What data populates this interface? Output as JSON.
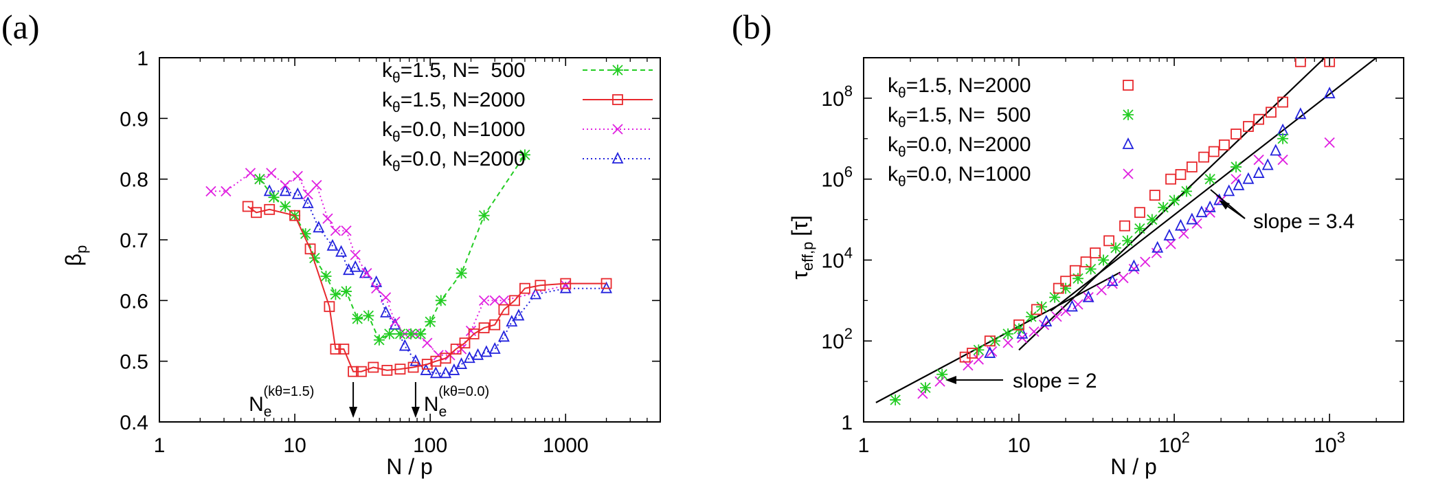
{
  "chart_data": [
    {
      "type": "scatter",
      "panel_label": "(a)",
      "xlabel": "N / p",
      "ylabel": "β",
      "ylabel_sub": "p",
      "xscale": "log",
      "xlim": [
        1,
        5000
      ],
      "ylim": [
        0.4,
        1.0
      ],
      "x_ticks": [
        1,
        10,
        100,
        1000
      ],
      "x_tick_labels": [
        "1",
        "10",
        "100",
        "1000"
      ],
      "y_ticks": [
        0.4,
        0.5,
        0.6,
        0.7,
        0.8,
        0.9,
        1.0
      ],
      "y_tick_labels": [
        "0.4",
        "0.5",
        "0.6",
        "0.7",
        "0.8",
        "0.9",
        "1"
      ],
      "legend": "top-right",
      "series": [
        {
          "label": {
            "k": "k",
            "sub": "θ",
            "rest": "=1.5, N=  500"
          },
          "color": "#22cc22",
          "marker": "asterisk",
          "line": "dashed",
          "x": [
            5.5,
            7,
            8.5,
            10,
            12,
            14,
            17,
            20,
            24,
            29,
            35,
            42,
            50,
            60,
            72,
            85,
            100,
            120,
            170,
            250,
            500
          ],
          "y": [
            0.8,
            0.77,
            0.755,
            0.74,
            0.71,
            0.67,
            0.64,
            0.61,
            0.615,
            0.57,
            0.575,
            0.535,
            0.545,
            0.545,
            0.545,
            0.545,
            0.565,
            0.6,
            0.645,
            0.74,
            0.84
          ]
        },
        {
          "label": {
            "k": "k",
            "sub": "θ",
            "rest": "=1.5, N=2000"
          },
          "color": "#e8282d",
          "marker": "square",
          "line": "solid",
          "x": [
            4.5,
            5.2,
            6.5,
            10,
            13,
            18,
            20,
            23,
            27,
            31,
            38,
            48,
            60,
            75,
            95,
            110,
            130,
            155,
            180,
            210,
            250,
            300,
            350,
            420,
            500,
            650,
            1000,
            2000
          ],
          "y": [
            0.755,
            0.745,
            0.75,
            0.74,
            0.685,
            0.59,
            0.52,
            0.52,
            0.483,
            0.483,
            0.49,
            0.485,
            0.487,
            0.49,
            0.495,
            0.5,
            0.505,
            0.52,
            0.53,
            0.545,
            0.555,
            0.56,
            0.585,
            0.6,
            0.62,
            0.625,
            0.628,
            0.628
          ]
        },
        {
          "label": {
            "k": "k",
            "sub": "θ",
            "rest": "=0.0, N=1000"
          },
          "color": "#e020e0",
          "marker": "cross",
          "line": "dotted",
          "x": [
            2.4,
            3.1,
            4.7,
            5.5,
            6.7,
            8.5,
            10.5,
            12.5,
            14.5,
            17.5,
            20,
            24,
            28,
            34,
            40,
            47,
            55,
            65,
            77,
            95,
            115,
            140,
            170,
            200,
            250,
            300,
            350,
            1000
          ],
          "y": [
            0.78,
            0.78,
            0.81,
            0.8,
            0.81,
            0.79,
            0.805,
            0.775,
            0.79,
            0.735,
            0.715,
            0.715,
            0.675,
            0.645,
            0.62,
            0.605,
            0.565,
            0.545,
            0.545,
            0.53,
            0.51,
            0.51,
            0.52,
            0.55,
            0.6,
            0.6,
            0.6,
            0.625
          ]
        },
        {
          "label": {
            "k": "k",
            "sub": "θ",
            "rest": "=0.0, N=2000"
          },
          "color": "#2222dd",
          "marker": "triangle",
          "line": "dotted",
          "x": [
            6.5,
            8.5,
            10.5,
            12.5,
            15,
            19,
            22,
            25,
            28,
            33,
            40,
            47,
            55,
            65,
            78,
            93,
            110,
            130,
            150,
            170,
            195,
            225,
            260,
            300,
            350,
            400,
            450,
            600,
            1000,
            2000
          ],
          "y": [
            0.78,
            0.78,
            0.775,
            0.76,
            0.72,
            0.69,
            0.68,
            0.65,
            0.655,
            0.645,
            0.63,
            0.58,
            0.56,
            0.525,
            0.5,
            0.485,
            0.48,
            0.48,
            0.485,
            0.495,
            0.505,
            0.51,
            0.515,
            0.52,
            0.54,
            0.565,
            0.575,
            0.61,
            0.62,
            0.62
          ]
        }
      ],
      "annotations": [
        {
          "label": "N",
          "sub": "e",
          "sup": "(kθ=1.5)",
          "x": 27
        },
        {
          "label": "N",
          "sub": "e",
          "sup": "(kθ=0.0)",
          "x": 78
        }
      ]
    },
    {
      "type": "scatter",
      "panel_label": "(b)",
      "xlabel": "N / p",
      "ylabel": "τ",
      "ylabel_sub": "eff,p",
      "ylabel_unit": "[τ]",
      "xscale": "log",
      "yscale": "log",
      "xlim": [
        1,
        3000
      ],
      "ylim": [
        1,
        1000000000.0
      ],
      "x_ticks": [
        1,
        10,
        100,
        1000
      ],
      "x_tick_labels": [
        {
          "base": "1",
          "exp": ""
        },
        {
          "base": "10",
          "exp": ""
        },
        {
          "base": "10",
          "exp": "2"
        },
        {
          "base": "10",
          "exp": "3"
        }
      ],
      "y_ticks": [
        1,
        100,
        10000,
        1000000,
        100000000
      ],
      "y_tick_labels": [
        {
          "base": "1",
          "exp": ""
        },
        {
          "base": "10",
          "exp": "2"
        },
        {
          "base": "10",
          "exp": "4"
        },
        {
          "base": "10",
          "exp": "6"
        },
        {
          "base": "10",
          "exp": "8"
        }
      ],
      "legend": "top-left",
      "series": [
        {
          "label": {
            "k": "k",
            "sub": "θ",
            "rest": "=1.5, N=2000"
          },
          "color": "#e8282d",
          "marker": "square",
          "x": [
            4.5,
            5,
            6.5,
            10,
            13,
            18,
            20,
            23,
            27,
            31,
            38,
            48,
            60,
            75,
            95,
            110,
            130,
            155,
            180,
            210,
            250,
            300,
            350,
            420,
            500,
            650,
            1000
          ],
          "y": [
            40,
            50,
            100,
            250,
            600,
            2000,
            3000,
            5500,
            9000,
            15000,
            30000,
            70000,
            150000,
            400000,
            1000000,
            1300000,
            2000000,
            3500000,
            4800000,
            7000000,
            13000000,
            20000000,
            30000000,
            45000000,
            80000000,
            800000000,
            800000000
          ]
        },
        {
          "label": {
            "k": "k",
            "sub": "θ",
            "rest": "=1.5, N=  500"
          },
          "color": "#22cc22",
          "marker": "asterisk",
          "x": [
            1.6,
            2.5,
            3.2,
            5.5,
            7,
            8.5,
            10,
            12,
            14,
            17,
            20,
            24,
            29,
            35,
            42,
            50,
            60,
            72,
            85,
            100,
            120,
            170,
            250,
            500
          ],
          "y": [
            3.5,
            7,
            15,
            60,
            100,
            150,
            200,
            400,
            700,
            1200,
            2000,
            3500,
            6000,
            10000,
            20000,
            30000,
            60000,
            100000,
            200000,
            300000,
            500000,
            1000000,
            2000000,
            10000000
          ]
        },
        {
          "label": {
            "k": "k",
            "sub": "θ",
            "rest": "=0.0, N=2000"
          },
          "color": "#2222dd",
          "marker": "triangle",
          "x": [
            6.5,
            10.5,
            15,
            22,
            28,
            40,
            55,
            78,
            93,
            110,
            130,
            150,
            170,
            195,
            225,
            260,
            300,
            350,
            400,
            450,
            500,
            650,
            1000
          ],
          "y": [
            50,
            150,
            300,
            700,
            1200,
            3000,
            7000,
            20000,
            40000,
            70000,
            100000,
            150000,
            200000,
            300000,
            500000,
            700000,
            1000000,
            1400000,
            2200000,
            5000000,
            16000000,
            40000000,
            130000000
          ]
        },
        {
          "label": {
            "k": "k",
            "sub": "θ",
            "rest": "=0.0, N=1000"
          },
          "color": "#e020e0",
          "marker": "cross",
          "x": [
            2.4,
            3.1,
            4.7,
            5.5,
            6.7,
            8.5,
            10.5,
            12.5,
            14.5,
            17.5,
            20,
            24,
            28,
            34,
            40,
            47,
            55,
            65,
            77,
            95,
            115,
            140,
            170,
            200,
            250,
            350,
            500,
            1000
          ],
          "y": [
            5,
            10,
            25,
            35,
            55,
            90,
            120,
            170,
            250,
            400,
            550,
            800,
            1200,
            1800,
            2600,
            3600,
            6000,
            9000,
            15000,
            25000,
            45000,
            80000,
            150000,
            300000,
            1000000,
            3000000,
            3000000,
            8000000
          ]
        }
      ],
      "fit_lines": [
        {
          "x": [
            1.2,
            45
          ],
          "y": [
            3,
            5000
          ]
        },
        {
          "x": [
            10,
            1000
          ],
          "y": [
            60,
            1300000000
          ]
        },
        {
          "x": [
            16,
            2000
          ],
          "y": [
            550,
            1000000000
          ]
        }
      ],
      "annotations": [
        {
          "text": "slope = 3.4"
        },
        {
          "text": "slope = 2"
        }
      ]
    }
  ]
}
